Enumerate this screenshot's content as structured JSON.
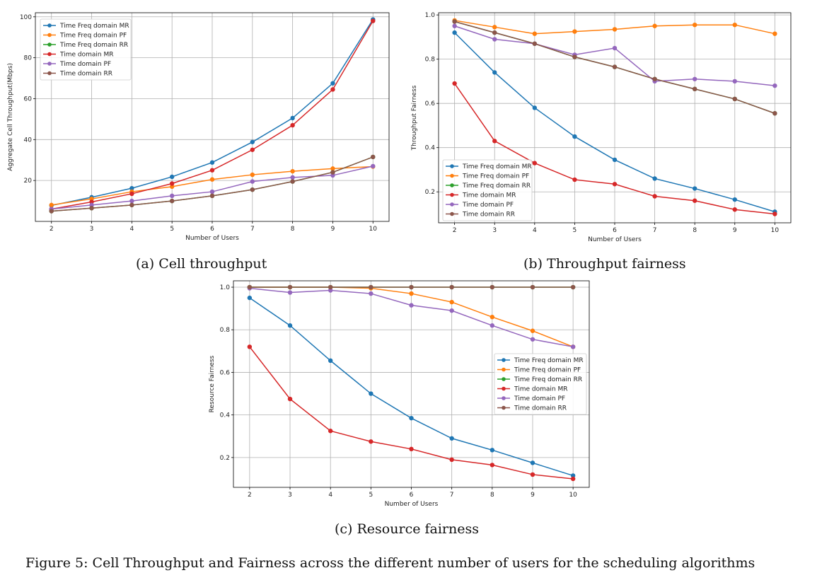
{
  "figure_caption": "Figure 5: Cell Throughput and Fairness across the different number of users for the scheduling algorithms",
  "series_colors": {
    "Time Freq domain MR": "#1f77b4",
    "Time Freq domain PF": "#ff7f0e",
    "Time Freq domain RR": "#2ca02c",
    "Time domain MR": "#d62728",
    "Time domain PF": "#9467bd",
    "Time domain RR": "#8c564b"
  },
  "chart_data": [
    {
      "type": "line",
      "caption": "(a) Cell throughput",
      "xlabel": "Number of Users",
      "ylabel": "Aggregate Cell Throughput(Mbps)",
      "x": [
        2,
        3,
        4,
        5,
        6,
        7,
        8,
        9,
        10
      ],
      "xlim": [
        1.6,
        10.4
      ],
      "ylim": [
        0,
        102
      ],
      "yticks": [
        20,
        40,
        60,
        80,
        100
      ],
      "ytick_labels": [
        "20",
        "40",
        "60",
        "80",
        "100"
      ],
      "grid": true,
      "legend": "top-left",
      "series": [
        {
          "name": "Time Freq domain MR",
          "values": [
            7.8,
            11.8,
            16.2,
            21.8,
            28.8,
            38.8,
            50.5,
            67.5,
            98.7
          ]
        },
        {
          "name": "Time Freq domain PF",
          "values": [
            8.0,
            11.0,
            14.5,
            17.0,
            20.5,
            22.8,
            24.5,
            25.8,
            26.8
          ]
        },
        {
          "name": "Time Freq domain RR",
          "values": [
            5.0,
            6.5,
            8.0,
            10.0,
            12.5,
            15.5,
            19.5,
            24.0,
            31.5
          ]
        },
        {
          "name": "Time domain MR",
          "values": [
            6.0,
            9.5,
            13.5,
            18.5,
            25.0,
            35.0,
            47.0,
            64.5,
            98.0
          ]
        },
        {
          "name": "Time domain PF",
          "values": [
            6.0,
            8.0,
            10.0,
            12.5,
            14.5,
            19.5,
            21.5,
            22.5,
            27.0
          ]
        },
        {
          "name": "Time domain RR",
          "values": [
            5.0,
            6.5,
            8.0,
            10.0,
            12.5,
            15.5,
            19.5,
            24.0,
            31.5
          ]
        }
      ]
    },
    {
      "type": "line",
      "caption": "(b) Throughput fairness",
      "xlabel": "Number of Users",
      "ylabel": "Throughput Fairness",
      "x": [
        2,
        3,
        4,
        5,
        6,
        7,
        8,
        9,
        10
      ],
      "xlim": [
        1.6,
        10.4
      ],
      "ylim": [
        0.06,
        1.01
      ],
      "yticks": [
        0.2,
        0.4,
        0.6,
        0.8,
        1.0
      ],
      "ytick_labels": [
        "0.2",
        "0.4",
        "0.6",
        "0.8",
        "1.0"
      ],
      "grid": true,
      "legend": "bottom-left",
      "series": [
        {
          "name": "Time Freq domain MR",
          "values": [
            0.92,
            0.74,
            0.58,
            0.45,
            0.345,
            0.26,
            0.215,
            0.165,
            0.11
          ]
        },
        {
          "name": "Time Freq domain PF",
          "values": [
            0.975,
            0.945,
            0.915,
            0.925,
            0.935,
            0.95,
            0.955,
            0.955,
            0.915
          ]
        },
        {
          "name": "Time Freq domain RR",
          "values": [
            0.97,
            0.92,
            0.87,
            0.81,
            0.765,
            0.71,
            0.665,
            0.62,
            0.555
          ]
        },
        {
          "name": "Time domain MR",
          "values": [
            0.69,
            0.43,
            0.33,
            0.255,
            0.235,
            0.18,
            0.16,
            0.12,
            0.1
          ]
        },
        {
          "name": "Time domain PF",
          "values": [
            0.95,
            0.89,
            0.87,
            0.82,
            0.85,
            0.7,
            0.71,
            0.7,
            0.68
          ]
        },
        {
          "name": "Time domain RR",
          "values": [
            0.97,
            0.92,
            0.87,
            0.81,
            0.765,
            0.71,
            0.665,
            0.62,
            0.555
          ]
        }
      ]
    },
    {
      "type": "line",
      "caption": "(c) Resource fairness",
      "xlabel": "Number of Users",
      "ylabel": "Resource Fairness",
      "x": [
        2,
        3,
        4,
        5,
        6,
        7,
        8,
        9,
        10
      ],
      "xlim": [
        1.6,
        10.4
      ],
      "ylim": [
        0.06,
        1.03
      ],
      "yticks": [
        0.2,
        0.4,
        0.6,
        0.8,
        1.0
      ],
      "ytick_labels": [
        "0.2",
        "0.4",
        "0.6",
        "0.8",
        "1.0"
      ],
      "grid": true,
      "legend": "right",
      "series": [
        {
          "name": "Time Freq domain MR",
          "values": [
            0.95,
            0.82,
            0.655,
            0.5,
            0.385,
            0.29,
            0.235,
            0.175,
            0.115
          ]
        },
        {
          "name": "Time Freq domain PF",
          "values": [
            1.0,
            1.0,
            1.0,
            0.995,
            0.97,
            0.93,
            0.86,
            0.795,
            0.72
          ]
        },
        {
          "name": "Time Freq domain RR",
          "values": [
            1.0,
            1.0,
            1.0,
            1.0,
            1.0,
            1.0,
            1.0,
            1.0,
            1.0
          ]
        },
        {
          "name": "Time domain MR",
          "values": [
            0.72,
            0.475,
            0.325,
            0.275,
            0.24,
            0.19,
            0.165,
            0.12,
            0.1
          ]
        },
        {
          "name": "Time domain PF",
          "values": [
            0.995,
            0.975,
            0.985,
            0.97,
            0.915,
            0.89,
            0.82,
            0.755,
            0.72
          ]
        },
        {
          "name": "Time domain RR",
          "values": [
            1.0,
            1.0,
            1.0,
            1.0,
            1.0,
            1.0,
            1.0,
            1.0,
            1.0
          ]
        }
      ]
    }
  ]
}
